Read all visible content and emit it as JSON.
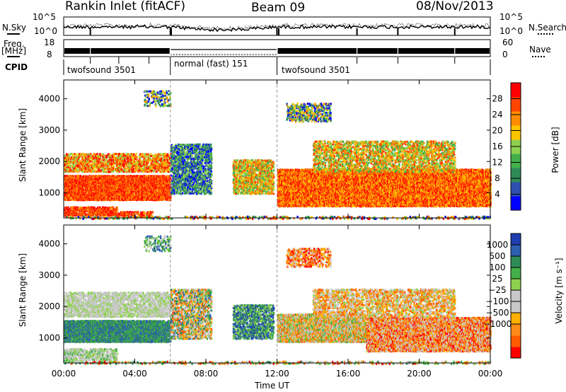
{
  "header": {
    "station": "Rankin Inlet (fitACF)",
    "beam": "Beam 09",
    "date": "08/Nov/2013"
  },
  "top_panels": {
    "nsky_label": "N.Sky",
    "nsearch_label": "N.Search",
    "freq_label_1": "Freq.",
    "freq_label_2": "[MHz]",
    "nave_label": "Nave",
    "cpid_label": "CPID",
    "nsky_ticks": [
      "10^5",
      "10^0"
    ],
    "nsearch_ticks": [
      "10^5",
      "10^0"
    ],
    "freq_ticks": [
      "18",
      "8"
    ],
    "nave_ticks": [
      "60",
      "0"
    ]
  },
  "cpid_segments": [
    {
      "label": "twofsound 3501",
      "start_h": 0,
      "end_h": 6
    },
    {
      "label": "normal (fast) 151",
      "start_h": 6,
      "end_h": 12
    },
    {
      "label": "twofsound 3501",
      "start_h": 12,
      "end_h": 24
    }
  ],
  "colors": {
    "power": [
      "#0000ff",
      "#2e4fb0",
      "#2e8b57",
      "#44b04a",
      "#8fd14f",
      "#ffc400",
      "#ff8c00",
      "#ff4500",
      "#ff0000"
    ],
    "velocity": [
      "#ff0000",
      "#ff5a00",
      "#ff8c1a",
      "#ffb000",
      "#c8c8c8",
      "#c8c8c8",
      "#8fd14f",
      "#44b04a",
      "#2e8b57",
      "#2e5fb0",
      "#1f3fb0"
    ]
  },
  "chart_data": [
    {
      "type": "heatmap",
      "name": "power",
      "xlabel": "",
      "ylabel": "Slant Range [km]",
      "xlim": [
        0,
        24
      ],
      "ylim": [
        200,
        4600
      ],
      "yticks": [
        1000,
        2000,
        3000,
        4000
      ],
      "colorbar_label": "Power [dB]",
      "colorbar_ticks": [
        "28",
        "24",
        "20",
        "16",
        "12",
        "8",
        "4"
      ],
      "colorbar_range": [
        0,
        32
      ]
    },
    {
      "type": "heatmap",
      "name": "velocity",
      "xlabel": "Time UT",
      "ylabel": "Slant Range [km]",
      "xlim": [
        0,
        24
      ],
      "ylim": [
        200,
        4600
      ],
      "yticks": [
        1000,
        2000,
        3000,
        4000
      ],
      "xticks": [
        "00:00",
        "04:00",
        "08:00",
        "12:00",
        "16:00",
        "20:00",
        "00:00"
      ],
      "colorbar_label": "Velocity [m s⁻¹]",
      "colorbar_ticks": [
        "1000",
        "500",
        "100",
        "25",
        "−25",
        "−100",
        "−500",
        "−1000"
      ]
    }
  ]
}
